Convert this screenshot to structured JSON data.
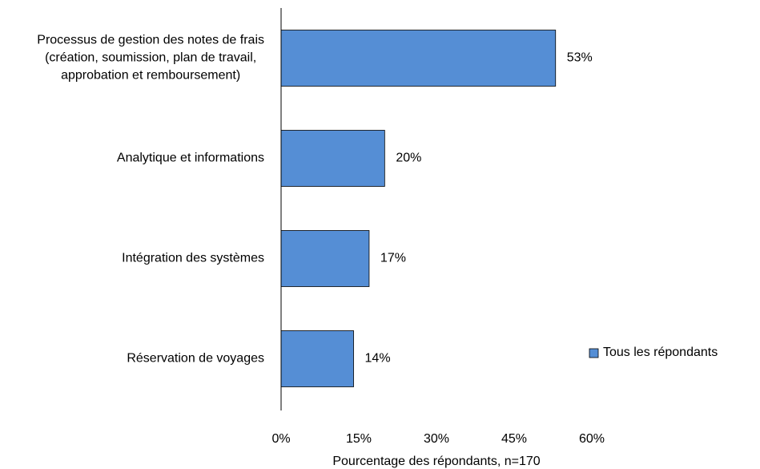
{
  "chart_data": {
    "type": "hbar",
    "categories": [
      "Processus de gestion des notes de frais (création, soumission, plan de travail, approbation et remboursement)",
      "Analytique et informations",
      "Intégration des systèmes",
      "Réservation de voyages"
    ],
    "series": [
      {
        "name": "Tous les répondants",
        "color": "#558ed5",
        "values": [
          53,
          20,
          17,
          14
        ],
        "value_labels": [
          "53%",
          "20%",
          "17%",
          "14%"
        ]
      }
    ],
    "xlabel": "Pourcentage des répondants, n=170",
    "xlim": [
      0,
      60
    ],
    "xticks": [
      {
        "value": 0,
        "label": "0%"
      },
      {
        "value": 15,
        "label": "15%"
      },
      {
        "value": 30,
        "label": "30%"
      },
      {
        "value": 45,
        "label": "45%"
      },
      {
        "value": 60,
        "label": "60%"
      }
    ],
    "legend": "right",
    "grid": false
  }
}
